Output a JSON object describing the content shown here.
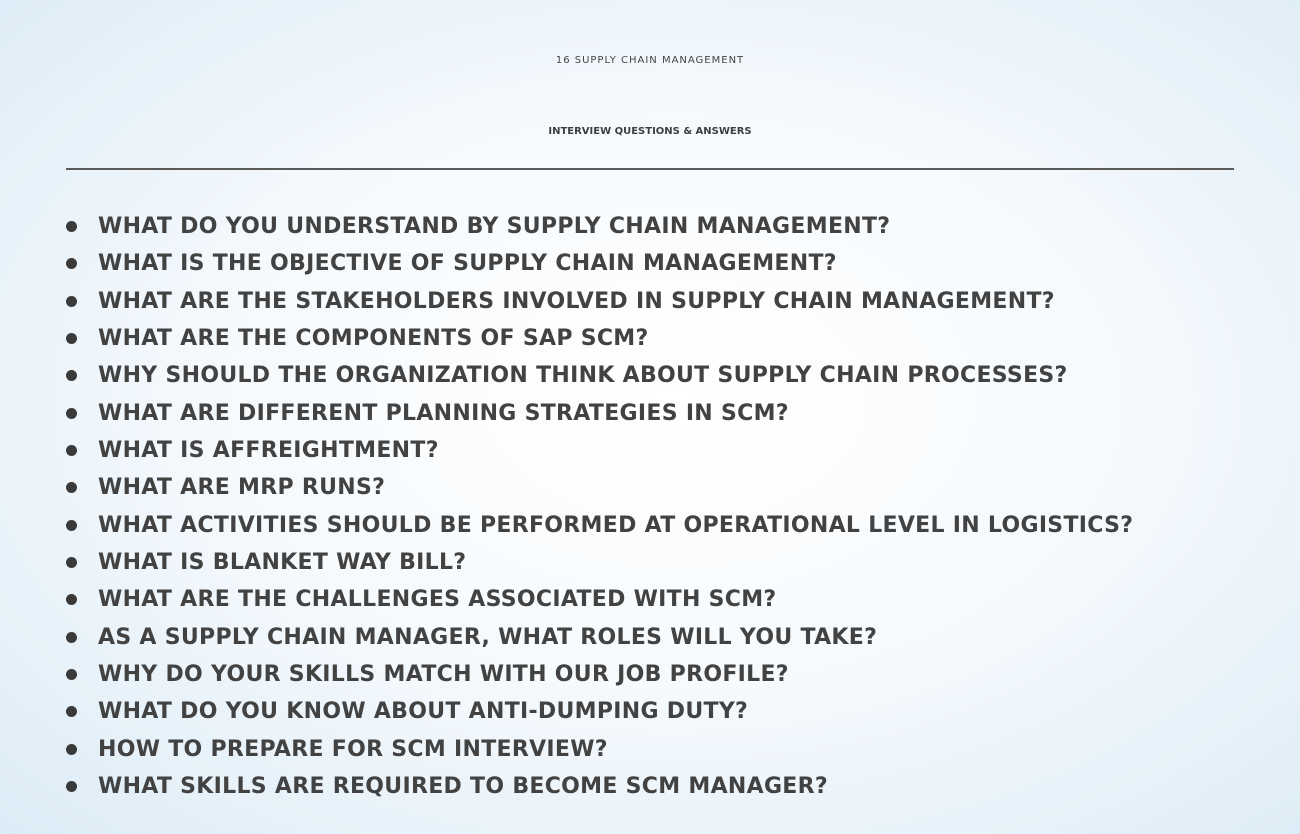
{
  "title": {
    "line1": "16 SUPPLY CHAIN MANAGEMENT",
    "line2": "INTERVIEW QUESTIONS & ANSWERS"
  },
  "questions": [
    "WHAT DO YOU UNDERSTAND BY SUPPLY CHAIN MANAGEMENT?",
    "WHAT IS THE OBJECTIVE OF SUPPLY CHAIN MANAGEMENT?",
    "WHAT ARE THE STAKEHOLDERS INVOLVED IN SUPPLY CHAIN MANAGEMENT?",
    "WHAT ARE THE COMPONENTS OF SAP SCM?",
    "WHY SHOULD THE ORGANIZATION THINK ABOUT SUPPLY CHAIN PROCESSES?",
    "WHAT ARE DIFFERENT PLANNING STRATEGIES IN SCM?",
    "WHAT IS AFFREIGHTMENT?",
    "WHAT ARE MRP RUNS?",
    "WHAT ACTIVITIES SHOULD BE PERFORMED AT OPERATIONAL LEVEL IN LOGISTICS?",
    "WHAT IS BLANKET WAY BILL?",
    "WHAT ARE THE CHALLENGES ASSOCIATED WITH SCM?",
    "AS A SUPPLY CHAIN MANAGER, WHAT ROLES WILL YOU TAKE?",
    "WHY DO YOUR SKILLS MATCH WITH OUR JOB PROFILE?",
    "WHAT DO YOU KNOW ABOUT ANTI-DUMPING DUTY?",
    "HOW TO PREPARE FOR SCM INTERVIEW?",
    "WHAT SKILLS ARE REQUIRED TO BECOME SCM MANAGER?"
  ],
  "colors": {
    "text": "#424242",
    "bullet": "#3a3a3a",
    "background_edge": "#dcebf6"
  }
}
